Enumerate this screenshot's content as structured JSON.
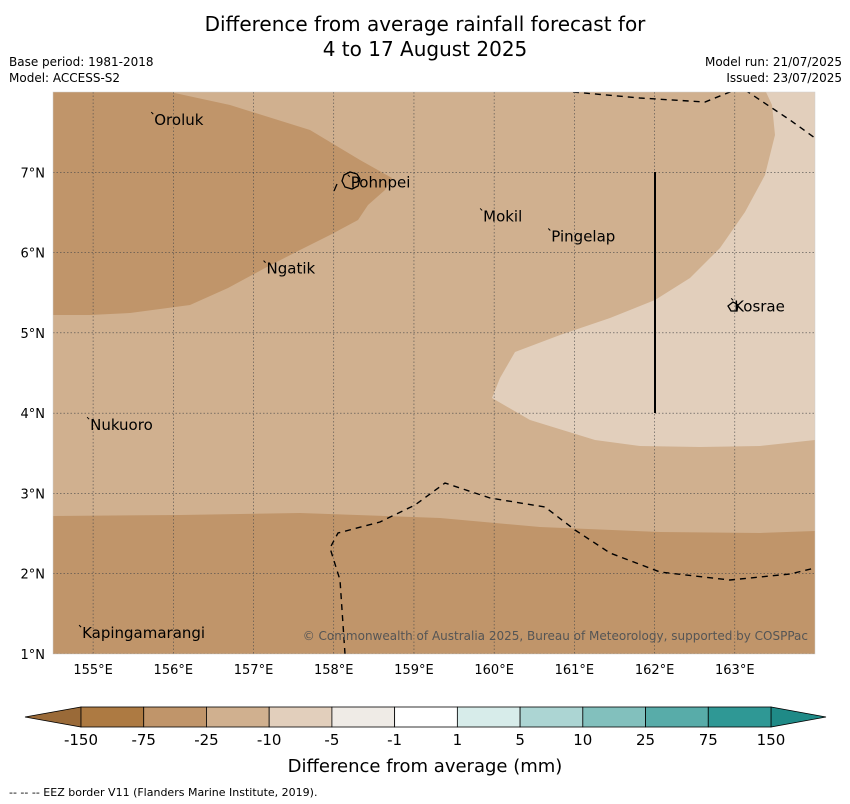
{
  "title": {
    "line1": "Difference from average rainfall forecast for",
    "line2": "4 to 17 August 2025"
  },
  "meta_left": {
    "base_period": "Base period: 1981-2018",
    "model": "Model: ACCESS-S2"
  },
  "meta_right": {
    "model_run": "Model run: 21/07/2025",
    "issued": "Issued: 23/07/2025"
  },
  "map": {
    "lon_range": [
      154.5,
      164.0
    ],
    "lat_range": [
      1.0,
      8.0
    ],
    "lon_ticks": [
      {
        "value": 155,
        "label": "155°E"
      },
      {
        "value": 156,
        "label": "156°E"
      },
      {
        "value": 157,
        "label": "157°E"
      },
      {
        "value": 158,
        "label": "158°E"
      },
      {
        "value": 159,
        "label": "159°E"
      },
      {
        "value": 160,
        "label": "160°E"
      },
      {
        "value": 161,
        "label": "161°E"
      },
      {
        "value": 162,
        "label": "162°E"
      },
      {
        "value": 163,
        "label": "163°E"
      }
    ],
    "lat_ticks": [
      {
        "value": 1,
        "label": "1°N"
      },
      {
        "value": 2,
        "label": "2°N"
      },
      {
        "value": 3,
        "label": "3°N"
      },
      {
        "value": 4,
        "label": "4°N"
      },
      {
        "value": 5,
        "label": "5°N"
      },
      {
        "value": 6,
        "label": "6°N"
      },
      {
        "value": 7,
        "label": "7°N"
      }
    ],
    "places": [
      {
        "name": "Oroluk",
        "lon": 155.75,
        "lat": 7.65
      },
      {
        "name": "Pohnpei",
        "lon": 158.2,
        "lat": 6.87
      },
      {
        "name": "Mokil",
        "lon": 159.85,
        "lat": 6.45
      },
      {
        "name": "Pingelap",
        "lon": 160.7,
        "lat": 6.2
      },
      {
        "name": "Ngatik",
        "lon": 157.15,
        "lat": 5.8
      },
      {
        "name": "Kosrae",
        "lon": 162.98,
        "lat": 5.33
      },
      {
        "name": "Nukuoro",
        "lon": 154.95,
        "lat": 3.85
      },
      {
        "name": "Kapingamarangi",
        "lon": 154.85,
        "lat": 1.26
      }
    ],
    "credit": "© Commonwealth of Australia 2025, Bureau of Meteorology, supported by COSPPac"
  },
  "colorbar": {
    "title": "Difference from average (mm)",
    "labels": [
      "-150",
      "-75",
      "-25",
      "-10",
      "-5",
      "-1",
      "1",
      "5",
      "10",
      "25",
      "75",
      "150"
    ],
    "colors": [
      "#ad7a42",
      "#c0956a",
      "#d0b08f",
      "#e2cfbc",
      "#efebe6",
      "#ffffff",
      "#d7ecea",
      "#acd5d3",
      "#82c0bd",
      "#58aca9",
      "#2f9895"
    ],
    "under_color": "#9a6a38",
    "over_color": "#1f8a87"
  },
  "colors": {
    "very_dry": "#c0956a",
    "dry": "#d0b08f",
    "slightly_dry": "#e2cfbc"
  },
  "footnote": "-- -- -- EEZ border V11 (Flanders Marine Institute, 2019)."
}
